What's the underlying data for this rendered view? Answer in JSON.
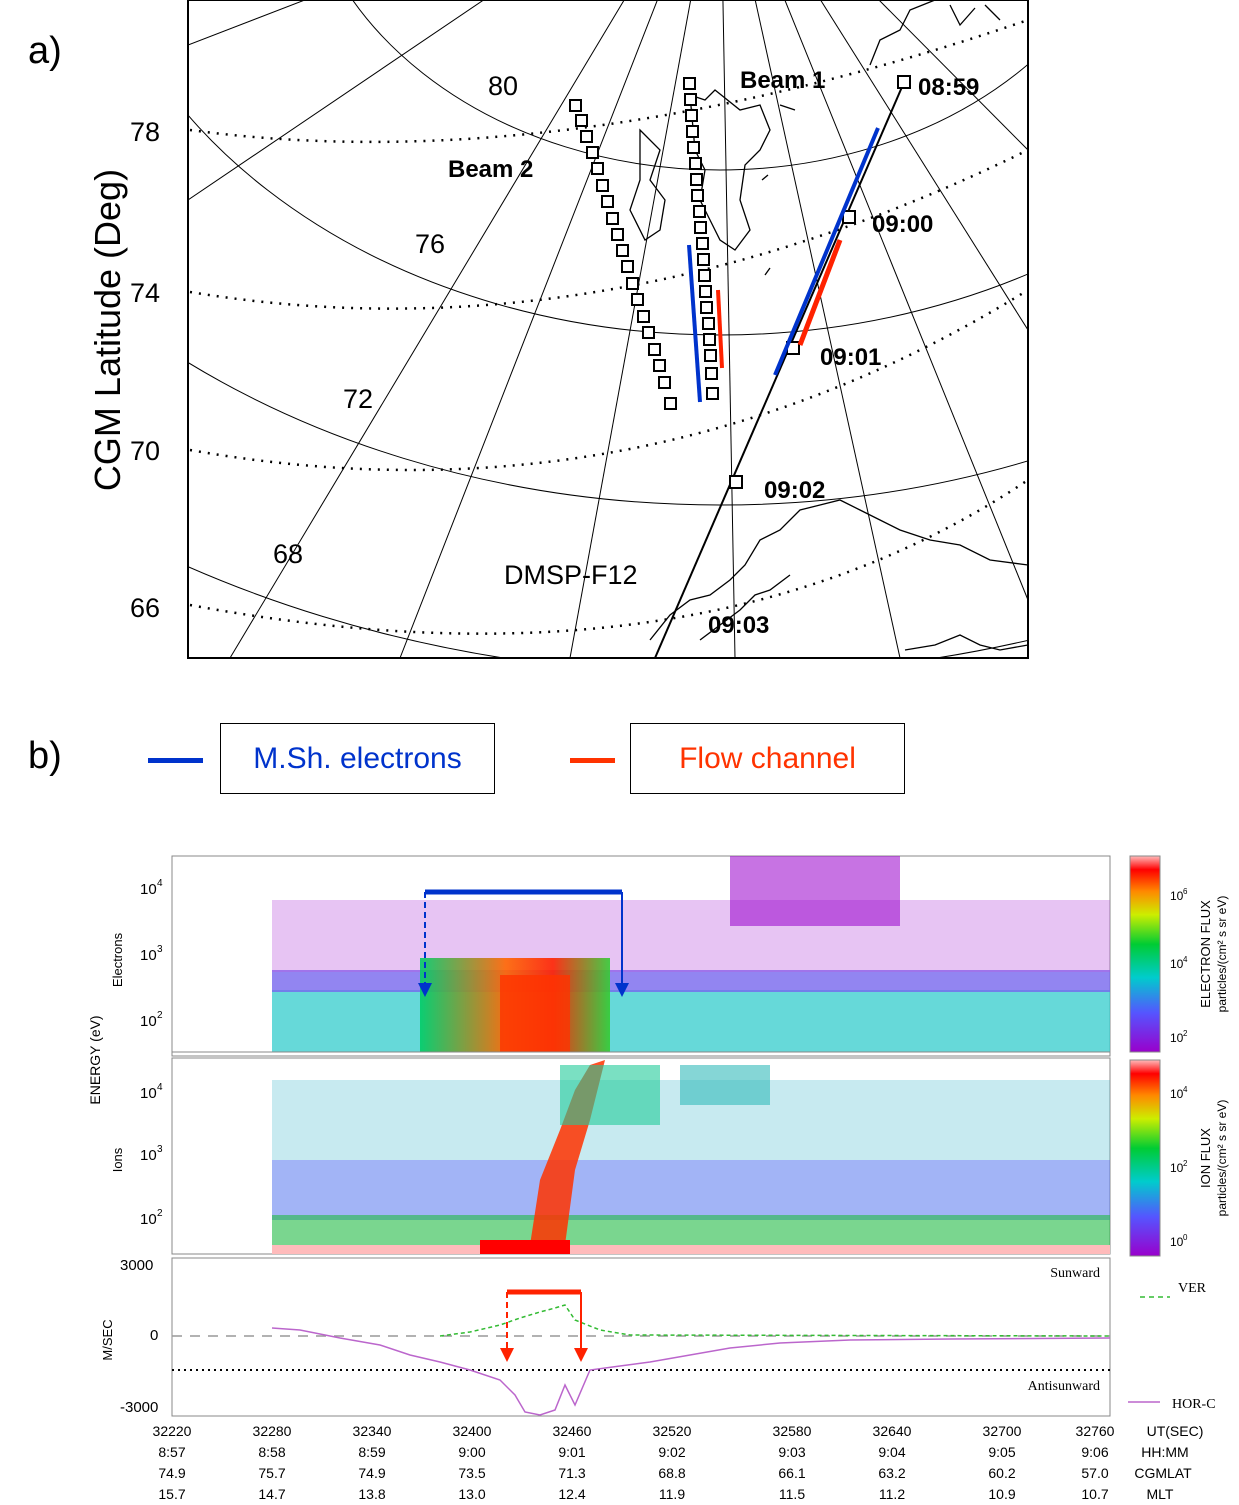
{
  "panel_a": {
    "label": "a)",
    "ylabel": "CGM Latitude (Deg)",
    "outer_lat_labels": [
      "78",
      "74",
      "70",
      "66"
    ],
    "inner_lat_labels": [
      "80",
      "76",
      "72",
      "68"
    ],
    "beam1_label": "Beam 1",
    "beam2_label": "Beam 2",
    "satellite_label": "DMSP-F12",
    "time_labels": [
      "08:59",
      "09:00",
      "09:01",
      "09:02",
      "09:03"
    ]
  },
  "panel_b": {
    "label": "b)",
    "legend": [
      {
        "text": "M.Sh. electrons",
        "color": "#0033cc"
      },
      {
        "text": "Flow channel",
        "color": "#ff3300"
      }
    ]
  },
  "spectrogram": {
    "energy_label": "ENERGY (eV)",
    "electrons_label": "Electrons",
    "ions_label": "Ions",
    "electron_ticks": [
      "10",
      "10",
      "10"
    ],
    "electron_exps": [
      "4",
      "3",
      "2"
    ],
    "ion_ticks": [
      "10",
      "10",
      "10"
    ],
    "ion_exps": [
      "4",
      "3",
      "2"
    ],
    "electron_cbar_label1": "ELECTRON FLUX",
    "electron_cbar_label2": "particles/(cm² s sr eV)",
    "ion_cbar_label1": "ION FLUX",
    "ion_cbar_label2": "particles/(cm² s sr eV)",
    "electron_cbar_ticks": [
      "10",
      "10",
      "10"
    ],
    "electron_cbar_exps": [
      "6",
      "4",
      "2"
    ],
    "ion_cbar_ticks": [
      "10",
      "10",
      "10"
    ],
    "ion_cbar_exps": [
      "4",
      "2",
      "0"
    ],
    "velocity_label": "M/SEC",
    "vel_ticks": [
      "3000",
      "0",
      "-3000"
    ],
    "sunward_label": "Sunward",
    "antisunward_label": "Antisunward",
    "ver_label": "VER",
    "hor_label": "HOR-C"
  },
  "time_axis": {
    "ut_sec": [
      "32220",
      "32280",
      "32340",
      "32400",
      "32460",
      "32520",
      "32580",
      "32640",
      "32700",
      "32760"
    ],
    "hhmm": [
      "8:57",
      "8:58",
      "8:59",
      "9:00",
      "9:01",
      "9:02",
      "9:03",
      "9:04",
      "9:05",
      "9:06"
    ],
    "cgmlat": [
      "74.9",
      "75.7",
      "74.9",
      "73.5",
      "71.3",
      "68.8",
      "66.1",
      "63.2",
      "60.2",
      "57.0"
    ],
    "mlt": [
      "15.7",
      "14.7",
      "13.8",
      "13.0",
      "12.4",
      "11.9",
      "11.5",
      "11.2",
      "10.9",
      "10.7"
    ],
    "ut_unit": "UT(SEC)",
    "hhmm_unit": "HH:MM",
    "cgmlat_unit": "CGMLAT",
    "mlt_unit": "MLT"
  },
  "colors": {
    "blue": "#0033cc",
    "red": "#ff2200"
  }
}
